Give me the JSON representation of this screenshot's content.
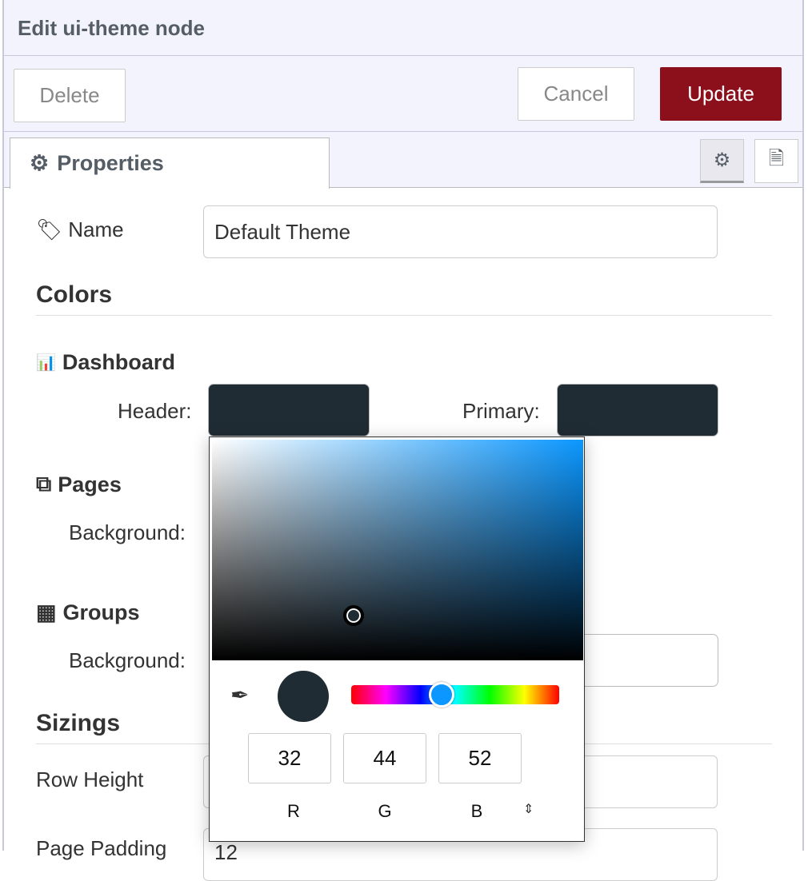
{
  "header": {
    "title": "Edit ui-theme node"
  },
  "toolbar": {
    "delete": "Delete",
    "cancel": "Cancel",
    "update": "Update"
  },
  "tabs": {
    "properties": "Properties"
  },
  "form": {
    "name_label": "Name",
    "name_value": "Default Theme",
    "colors_heading": "Colors",
    "dashboard": {
      "title": "Dashboard",
      "header_label": "Header:",
      "primary_label": "Primary:",
      "header_color": "#202c34",
      "primary_color": "#202c34"
    },
    "pages": {
      "title": "Pages",
      "background_label": "Background:"
    },
    "groups": {
      "title": "Groups",
      "background_label": "Background:"
    },
    "sizings_heading": "Sizings",
    "row_height_label": "Row Height",
    "page_padding_label": "Page Padding",
    "page_padding_value": "12"
  },
  "picker": {
    "r": "32",
    "g": "44",
    "b": "52",
    "r_label": "R",
    "g_label": "G",
    "b_label": "B",
    "hue_color": "#0b97ff"
  },
  "colors": {
    "update": "#8c101c",
    "header_bg": "#f3f3fd"
  }
}
